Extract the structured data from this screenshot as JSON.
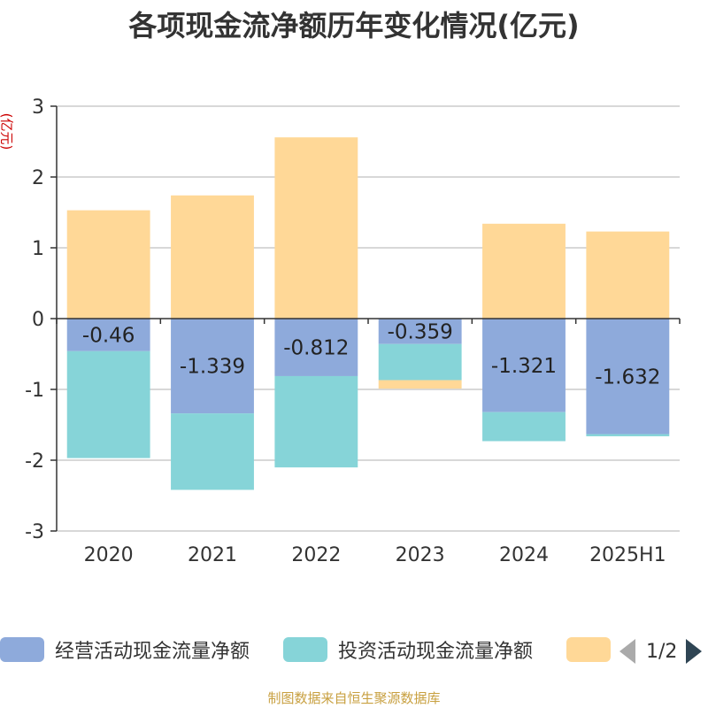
{
  "chart_data": {
    "type": "bar",
    "stacked": true,
    "title": "各项现金流净额历年变化情况(亿元)",
    "unit_label": "(亿元)",
    "categories": [
      "2020",
      "2021",
      "2022",
      "2023",
      "2024",
      "2025H1"
    ],
    "ylim": [
      -3,
      3
    ],
    "yticks": [
      -3,
      -2,
      -1,
      0,
      1,
      2,
      3
    ],
    "grid": true,
    "legend_position": "bottom",
    "series": [
      {
        "name": "经营活动现金流量净额",
        "color": "#8eaadb",
        "values": [
          -0.46,
          -1.339,
          -0.812,
          -0.359,
          -1.321,
          -1.632
        ],
        "labels": [
          "-0.46",
          "-1.339",
          "-0.812",
          "-0.359",
          "-1.321",
          "-1.632"
        ]
      },
      {
        "name": "投资活动现金流量净额",
        "color": "#86d4d8",
        "values": [
          -1.51,
          -1.08,
          -1.29,
          -0.51,
          -0.41,
          -0.03
        ]
      },
      {
        "name": "",
        "color": "#ffd897",
        "values": [
          1.53,
          1.74,
          2.56,
          -0.12,
          1.34,
          1.23
        ]
      }
    ]
  },
  "legend": {
    "pager_text": "1/2"
  },
  "source_note": "制图数据来自恒生聚源数据库"
}
